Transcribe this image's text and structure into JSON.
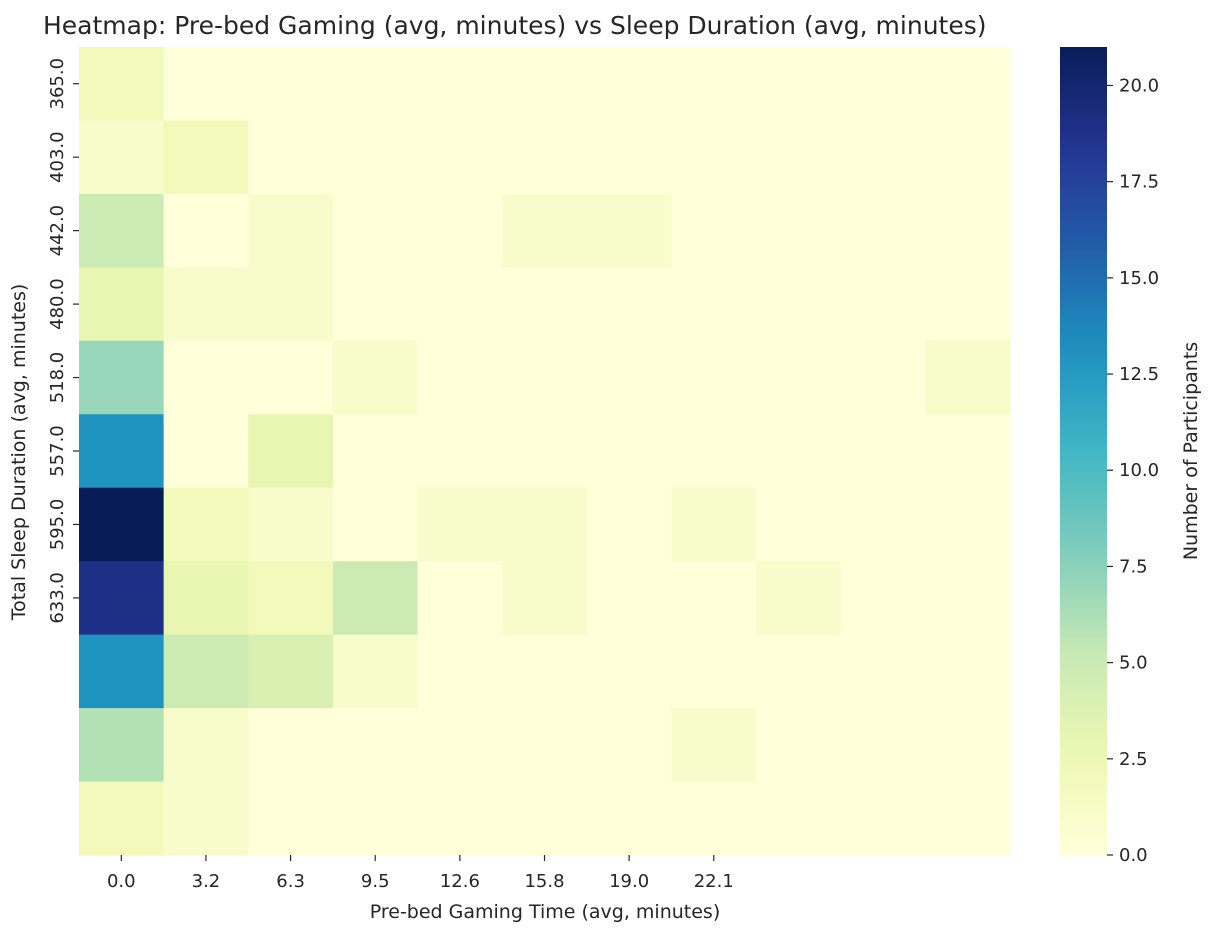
{
  "chart_data": {
    "type": "heatmap",
    "title": "Heatmap: Pre-bed Gaming (avg, minutes) vs Sleep Duration (avg, minutes)",
    "xlabel": "Pre-bed Gaming Time (avg, minutes)",
    "ylabel": "Total Sleep Duration (avg, minutes)",
    "colorbar_label": "Number of Participants",
    "colormap": "YlGnBu",
    "x_tick_labels": [
      "0.0",
      "3.2",
      "6.3",
      "9.5",
      "12.6",
      "15.8",
      "19.0",
      "22.1"
    ],
    "y_tick_labels": [
      "365.0",
      "403.0",
      "442.0",
      "480.0",
      "518.0",
      "557.0",
      "595.0",
      "633.0"
    ],
    "grid_rows": 11,
    "grid_cols": 11,
    "values": [
      [
        2,
        0,
        0,
        0,
        0,
        0,
        0,
        0,
        0,
        0,
        0
      ],
      [
        1,
        2,
        0,
        0,
        0,
        0,
        0,
        0,
        0,
        0,
        0
      ],
      [
        5,
        0,
        1,
        0,
        0,
        1,
        1,
        0,
        0,
        0,
        0
      ],
      [
        3,
        1,
        1,
        0,
        0,
        0,
        0,
        0,
        0,
        0,
        0
      ],
      [
        7,
        0,
        0,
        1,
        0,
        0,
        0,
        0,
        0,
        0,
        1
      ],
      [
        13,
        0,
        3,
        0,
        0,
        0,
        0,
        0,
        0,
        0,
        0
      ],
      [
        21,
        2,
        1,
        0,
        1,
        1,
        0,
        1,
        0,
        0,
        0
      ],
      [
        19,
        3,
        2,
        5,
        0,
        1,
        0,
        0,
        1,
        0,
        0
      ],
      [
        13,
        5,
        4,
        1,
        0,
        0,
        0,
        0,
        0,
        0,
        0
      ],
      [
        6,
        1,
        0,
        0,
        0,
        0,
        0,
        1,
        0,
        0,
        0
      ],
      [
        2,
        1,
        0,
        0,
        0,
        0,
        0,
        0,
        0,
        0,
        0
      ]
    ],
    "colorbar_range": [
      0,
      21
    ],
    "colorbar_ticks": [
      "0.0",
      "2.5",
      "5.0",
      "7.5",
      "10.0",
      "12.5",
      "15.0",
      "17.5",
      "20.0"
    ],
    "grid": false
  }
}
